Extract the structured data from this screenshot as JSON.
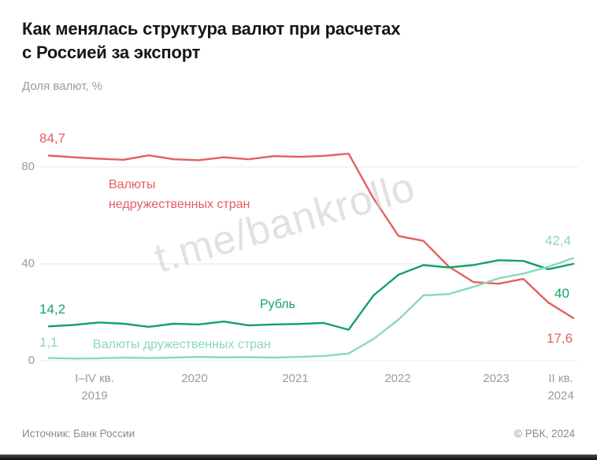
{
  "title": "Как менялась структура валют при расчетах\nс Россией за экспорт",
  "subtitle": "Доля валют, %",
  "watermark": "t.me/bankrollo",
  "footer": {
    "source": "Источник: Банк России",
    "copyright": "© РБК, 2024"
  },
  "colors": {
    "unfriendly": "#e45f5f",
    "ruble": "#12a263",
    "friendly": "#8bd8b9",
    "grid": "#e8e8e8",
    "axis_text": "#9b9b9b"
  },
  "annotations": {
    "start_unfriendly": "84,7",
    "start_ruble": "14,2",
    "start_friendly": "1,1",
    "end_friendly": "42,4",
    "end_ruble": "40",
    "end_unfriendly": "17,6",
    "label_unfriendly": "Валюты\nнедружественных стран",
    "label_ruble": "Рубль",
    "label_friendly": "Валюты дружественных стран"
  },
  "chart_data": {
    "type": "line",
    "title": "Как менялась структура валют при расчетах с Россией за экспорт",
    "ylabel": "Доля валют, %",
    "ylim": [
      0,
      95
    ],
    "yticks": [
      0,
      40,
      80
    ],
    "xticks": [
      "I–IV кв.\n2019",
      "2020",
      "2021",
      "2022",
      "2023",
      "II кв.\n2024"
    ],
    "x": [
      "2019Q1",
      "2019Q2",
      "2019Q3",
      "2019Q4",
      "2020Q1",
      "2020Q2",
      "2020Q3",
      "2020Q4",
      "2021Q1",
      "2021Q2",
      "2021Q3",
      "2021Q4",
      "2022Q1",
      "2022Q2",
      "2022Q3",
      "2022Q4",
      "2023Q1",
      "2023Q2",
      "2023Q3",
      "2023Q4",
      "2024Q1",
      "2024Q2"
    ],
    "grid": true,
    "legend_position": "inline",
    "series": [
      {
        "name": "Валюты недружественных стран",
        "color": "#e45f5f",
        "values": [
          84.7,
          84.0,
          83.4,
          83.0,
          84.8,
          83.2,
          82.8,
          84.0,
          83.2,
          84.5,
          84.2,
          84.6,
          85.5,
          67.0,
          51.5,
          49.5,
          39.0,
          32.5,
          31.8,
          33.8,
          24.0,
          17.6
        ]
      },
      {
        "name": "Рубль",
        "color": "#12a263",
        "values": [
          14.2,
          14.8,
          15.8,
          15.3,
          14.0,
          15.3,
          15.0,
          16.2,
          14.6,
          15.0,
          15.2,
          15.6,
          12.8,
          27.0,
          35.5,
          39.5,
          38.5,
          39.5,
          41.5,
          41.2,
          37.8,
          40.0
        ]
      },
      {
        "name": "Валюты дружественных стран",
        "color": "#8bd8b9",
        "values": [
          1.1,
          0.9,
          1.0,
          1.3,
          1.1,
          1.3,
          1.6,
          1.4,
          1.5,
          1.3,
          1.6,
          2.0,
          3.0,
          9.0,
          17.0,
          27.0,
          27.5,
          30.5,
          34.0,
          36.0,
          38.8,
          42.4
        ]
      }
    ]
  }
}
